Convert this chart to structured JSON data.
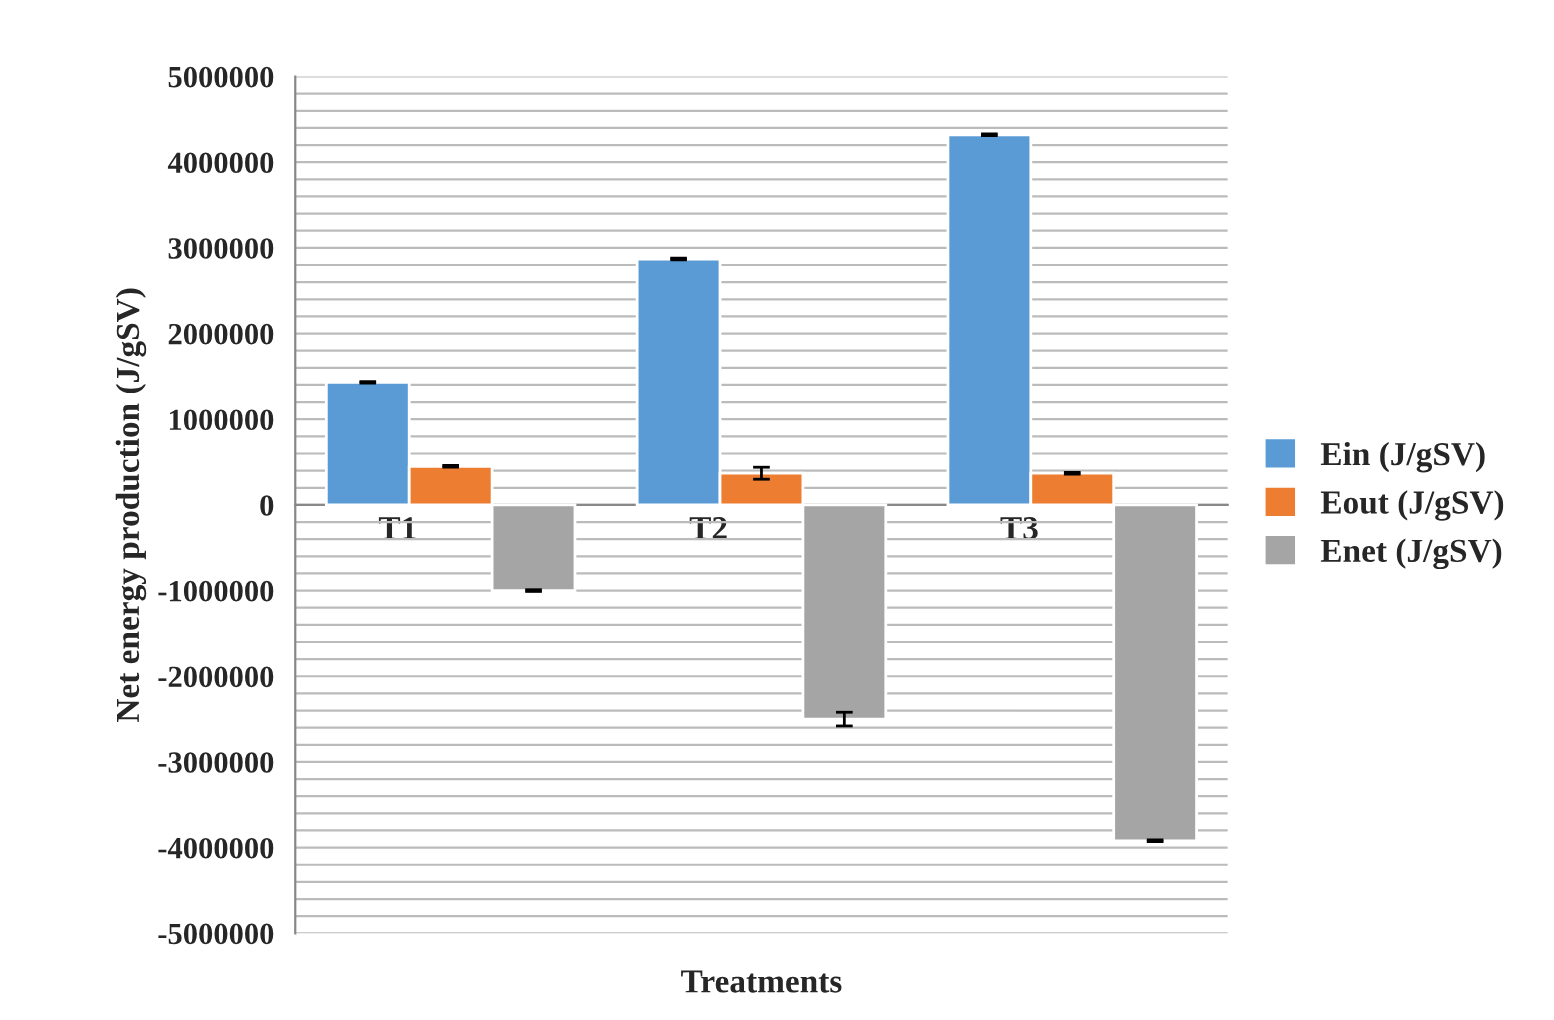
{
  "chart_data": {
    "type": "bar",
    "categories": [
      "T1",
      "T2",
      "T3"
    ],
    "xlabel": "Treatments",
    "ylabel": "Net energy production (J/gSV)",
    "series": [
      {
        "name": "Ein (J/gSV)",
        "color": "#5b9bd5",
        "values": [
          1430000,
          2870000,
          4320000
        ],
        "errors": [
          10000,
          10000,
          10000
        ]
      },
      {
        "name": "Eout (J/gSV)",
        "color": "#ed7d31",
        "values": [
          450000,
          370000,
          370000
        ],
        "errors": [
          10000,
          70000,
          10000
        ]
      },
      {
        "name": "Enet (J/gSV)",
        "color": "#a5a5a5",
        "values": [
          -1000000,
          -2500000,
          -3920000
        ],
        "errors": [
          10000,
          80000,
          10000
        ]
      }
    ],
    "ylim": [
      -5000000,
      5000000
    ],
    "yticks": [
      -5000000,
      {
        "value": -4800000,
        "label": null
      },
      {
        "value": -4600000,
        "label": null
      },
      {
        "value": -4400000,
        "label": null
      },
      {
        "value": -4200000,
        "label": null
      },
      -4000000,
      {
        "value": -3800000,
        "label": null
      },
      {
        "value": -3600000,
        "label": null
      },
      {
        "value": -3400000,
        "label": null
      },
      {
        "value": -3200000,
        "label": null
      },
      -3000000,
      {
        "value": -2800000,
        "label": null
      },
      {
        "value": -2600000,
        "label": null
      },
      {
        "value": -2400000,
        "label": null
      },
      {
        "value": -2200000,
        "label": null
      },
      -2000000,
      {
        "value": -1800000,
        "label": null
      },
      {
        "value": -1600000,
        "label": null
      },
      {
        "value": -1400000,
        "label": null
      },
      {
        "value": -1200000,
        "label": null
      },
      -1000000,
      {
        "value": -800000,
        "label": null
      },
      {
        "value": -600000,
        "label": null
      },
      {
        "value": -400000,
        "label": null
      },
      {
        "value": -200000,
        "label": null
      },
      0,
      {
        "value": 200000,
        "label": null
      },
      {
        "value": 400000,
        "label": null
      },
      {
        "value": 600000,
        "label": null
      },
      {
        "value": 800000,
        "label": null
      },
      1000000,
      {
        "value": 1200000,
        "label": null
      },
      {
        "value": 1400000,
        "label": null
      },
      {
        "value": 1600000,
        "label": null
      },
      {
        "value": 1800000,
        "label": null
      },
      2000000,
      {
        "value": 2200000,
        "label": null
      },
      {
        "value": 2400000,
        "label": null
      },
      {
        "value": 2600000,
        "label": null
      },
      {
        "value": 2800000,
        "label": null
      },
      3000000,
      {
        "value": 3200000,
        "label": null
      },
      {
        "value": 3400000,
        "label": null
      },
      {
        "value": 3600000,
        "label": null
      },
      {
        "value": 3800000,
        "label": null
      },
      4000000,
      {
        "value": 4200000,
        "label": null
      },
      {
        "value": 4400000,
        "label": null
      },
      {
        "value": 4600000,
        "label": null
      },
      {
        "value": 4800000,
        "label": null
      },
      5000000
    ],
    "grid": "y",
    "legend": "right"
  }
}
